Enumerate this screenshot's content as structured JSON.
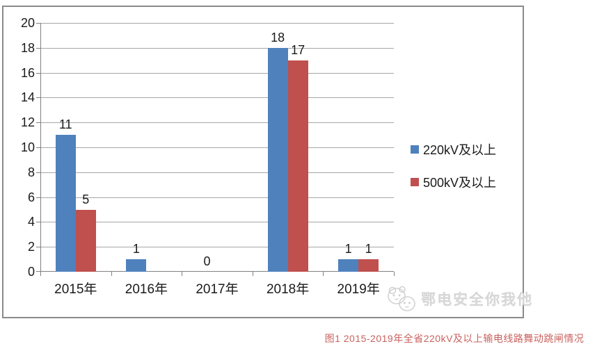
{
  "chart_data": {
    "type": "bar",
    "title": "",
    "categories": [
      "2015年",
      "2016年",
      "2017年",
      "2018年",
      "2019年"
    ],
    "series": [
      {
        "name": "220kV及以上",
        "color": "#4f81bd",
        "values": [
          11,
          1,
          0,
          18,
          1
        ]
      },
      {
        "name": "500kV及以上",
        "color": "#c0504d",
        "values": [
          5,
          null,
          null,
          17,
          1
        ]
      }
    ],
    "ylim": [
      0,
      20
    ],
    "ytick_step": 2,
    "grid": true,
    "legend_position": "right",
    "xlabel": "",
    "ylabel": ""
  },
  "colors": {
    "grid": "#a6a6a6",
    "axis": "#808080",
    "text": "#1a1a1a",
    "frame_border": "#8a8a8a",
    "caption": "#c9625e",
    "watermark": "#d6d6d6"
  },
  "watermark": {
    "text": "鄂电安全你我他"
  },
  "caption": "图1  2015-2019年全省220kV及以上输电线路舞动跳闸情况"
}
